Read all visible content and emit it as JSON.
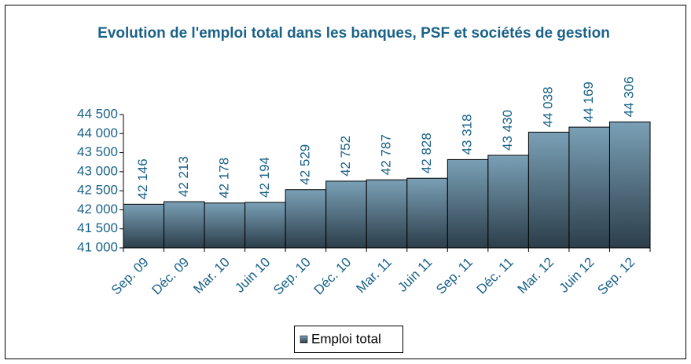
{
  "chart_data": {
    "type": "bar",
    "title": "Evolution de l'emploi total dans les banques, PSF et sociétés de gestion",
    "categories": [
      "Sep. 09",
      "Déc. 09",
      "Mar. 10",
      "Juin 10",
      "Sep. 10",
      "Déc. 10",
      "Mar. 11",
      "Juin 11",
      "Sep. 11",
      "Déc. 11",
      "Mar. 12",
      "Juin 12",
      "Sep. 12"
    ],
    "series": [
      {
        "name": "Emploi total",
        "color": "#7aa0b6",
        "values": [
          42146,
          42213,
          42178,
          42194,
          42529,
          42752,
          42787,
          42828,
          43318,
          43430,
          44038,
          44169,
          44306
        ],
        "value_labels": [
          "42 146",
          "42 213",
          "42 178",
          "42 194",
          "42 529",
          "42 752",
          "42 787",
          "42 828",
          "43 318",
          "43 430",
          "44 038",
          "44 169",
          "44 306"
        ]
      }
    ],
    "ylim": [
      41000,
      44500
    ],
    "yticks": [
      {
        "value": 41000,
        "label": "41 000"
      },
      {
        "value": 41500,
        "label": "41 500"
      },
      {
        "value": 42000,
        "label": "42 000"
      },
      {
        "value": 42500,
        "label": "42 500"
      },
      {
        "value": 43000,
        "label": "43 000"
      },
      {
        "value": 43500,
        "label": "43 500"
      },
      {
        "value": 44000,
        "label": "44 000"
      },
      {
        "value": 44500,
        "label": "44 500"
      }
    ],
    "grid": false,
    "legend": "bottom"
  }
}
